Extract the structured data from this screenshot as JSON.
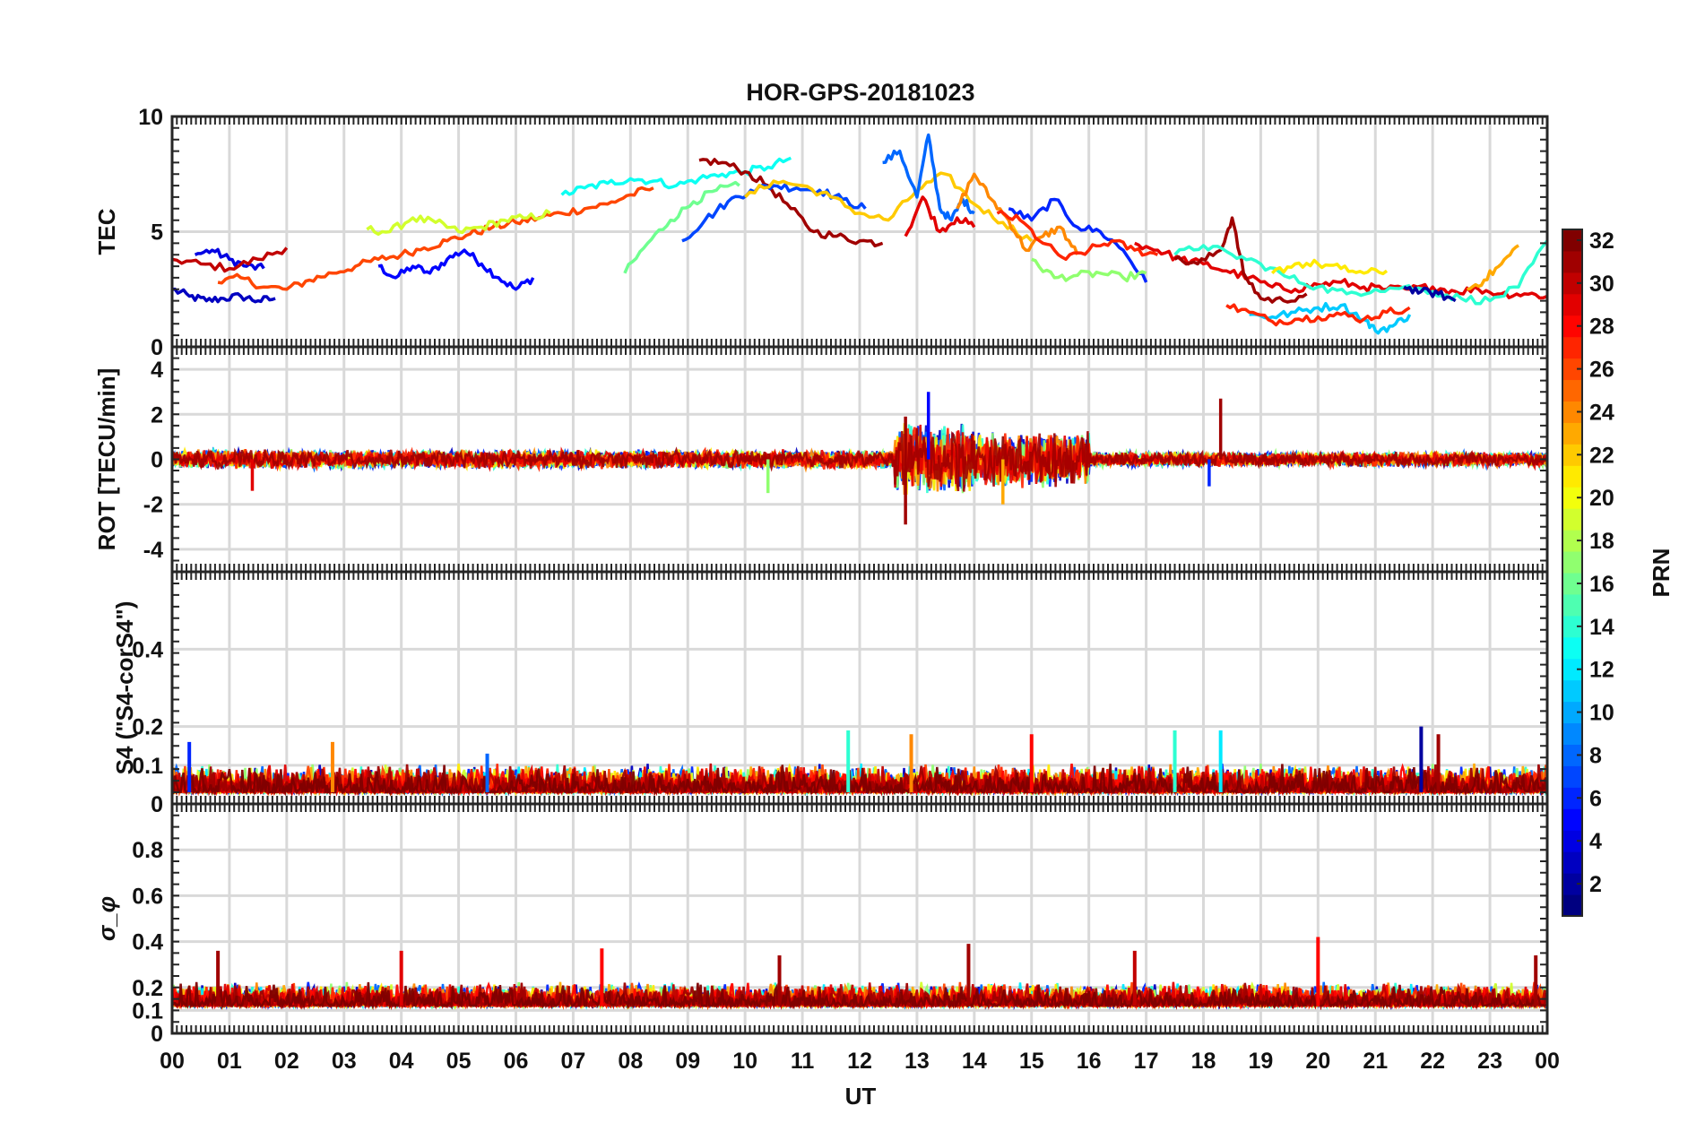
{
  "chart_data": {
    "type": "line",
    "title": "HOR-GPS-20181023",
    "xlabel": "UT",
    "x_ticks": [
      "00",
      "01",
      "02",
      "03",
      "04",
      "05",
      "06",
      "07",
      "08",
      "09",
      "10",
      "11",
      "12",
      "13",
      "14",
      "15",
      "16",
      "17",
      "18",
      "19",
      "20",
      "21",
      "22",
      "23",
      "00"
    ],
    "xlim": [
      0,
      24
    ],
    "grid": true,
    "colorbar": {
      "label": "PRN",
      "range": [
        1,
        32
      ],
      "ticks": [
        "2",
        "4",
        "6",
        "8",
        "10",
        "12",
        "14",
        "16",
        "18",
        "20",
        "22",
        "24",
        "26",
        "28",
        "30",
        "32"
      ],
      "colormap": "jet"
    },
    "panels": [
      {
        "id": "tec",
        "ylabel": "TEC",
        "ylim": [
          0,
          10
        ],
        "y_ticks": [
          "0",
          "5",
          "10"
        ],
        "series": [
          {
            "prn": 3,
            "x": [
              0.0,
              0.3,
              0.6,
              0.9,
              1.2,
              1.5,
              1.8
            ],
            "y": [
              2.5,
              2.2,
              2.0,
              2.1,
              2.2,
              2.0,
              2.1
            ]
          },
          {
            "prn": 5,
            "x": [
              3.6,
              3.9,
              4.2,
              4.5,
              4.8,
              5.1,
              5.4,
              5.7,
              6.0,
              6.3
            ],
            "y": [
              3.5,
              3.0,
              3.5,
              3.2,
              3.8,
              4.2,
              3.6,
              3.0,
              2.5,
              3.0
            ]
          },
          {
            "prn": 4,
            "x": [
              0.4,
              0.7,
              1.0,
              1.3,
              1.6
            ],
            "y": [
              4.0,
              4.2,
              3.8,
              3.5,
              3.4
            ]
          },
          {
            "prn": 30,
            "x": [
              0.0,
              0.5,
              1.0,
              1.5,
              2.0
            ],
            "y": [
              3.8,
              3.6,
              3.4,
              3.8,
              4.3
            ]
          },
          {
            "prn": 26,
            "x": [
              0.8,
              1.2,
              1.6,
              2.0,
              2.4,
              2.8,
              3.2,
              3.6,
              4.0,
              4.4,
              4.8,
              5.2,
              5.6,
              6.0,
              6.4,
              6.8,
              7.2,
              7.6,
              8.0,
              8.4
            ],
            "y": [
              2.8,
              3.0,
              2.6,
              2.5,
              2.9,
              3.2,
              3.5,
              3.8,
              4.0,
              4.3,
              4.6,
              4.9,
              5.2,
              5.4,
              5.6,
              5.8,
              6.0,
              6.2,
              6.6,
              6.9
            ]
          },
          {
            "prn": 19,
            "x": [
              3.4,
              3.8,
              4.2,
              4.6,
              5.0,
              5.4,
              5.8,
              6.2,
              6.6
            ],
            "y": [
              5.1,
              5.0,
              5.6,
              5.4,
              5.0,
              5.2,
              5.5,
              5.6,
              5.8
            ]
          },
          {
            "prn": 13,
            "x": [
              6.8,
              7.2,
              7.6,
              8.0,
              8.4,
              8.8,
              9.2,
              9.6,
              10.0,
              10.4,
              10.8
            ],
            "y": [
              6.6,
              6.9,
              7.1,
              7.3,
              7.2,
              7.0,
              7.3,
              7.5,
              7.6,
              7.8,
              8.2
            ]
          },
          {
            "prn": 16,
            "x": [
              7.9,
              8.3,
              8.7,
              9.1,
              9.5,
              9.9
            ],
            "y": [
              3.2,
              4.5,
              5.5,
              6.3,
              6.8,
              7.0
            ]
          },
          {
            "prn": 31,
            "x": [
              9.2,
              9.6,
              10.0,
              10.4,
              10.8,
              11.2,
              11.6,
              12.0,
              12.4
            ],
            "y": [
              8.1,
              8.0,
              7.6,
              7.0,
              6.0,
              5.0,
              4.8,
              4.6,
              4.5
            ]
          },
          {
            "prn": 7,
            "x": [
              8.9,
              9.3,
              9.7,
              10.1,
              10.5,
              10.9,
              11.3,
              11.7,
              12.1
            ],
            "y": [
              4.6,
              5.5,
              6.3,
              6.8,
              7.0,
              6.9,
              6.8,
              6.4,
              6.0
            ]
          },
          {
            "prn": 22,
            "x": [
              10.0,
              10.5,
              11.0,
              11.5,
              12.0,
              12.5,
              13.0,
              13.5,
              14.0,
              14.5,
              15.0
            ],
            "y": [
              6.5,
              7.2,
              7.0,
              6.5,
              5.8,
              5.5,
              6.8,
              7.5,
              6.2,
              5.4,
              4.6
            ]
          },
          {
            "prn": 8,
            "x": [
              12.4,
              12.7,
              13.0,
              13.2,
              13.4,
              13.6,
              13.8,
              14.0
            ],
            "y": [
              8.0,
              8.5,
              6.5,
              9.2,
              6.0,
              5.5,
              6.4,
              5.8
            ]
          },
          {
            "prn": 29,
            "x": [
              12.8,
              13.1,
              13.4,
              13.7,
              14.0
            ],
            "y": [
              4.8,
              6.5,
              5.0,
              5.6,
              5.2
            ]
          },
          {
            "prn": 24,
            "x": [
              13.7,
              14.0,
              14.3,
              14.6,
              14.9,
              15.2,
              15.5,
              15.8
            ],
            "y": [
              6.0,
              7.5,
              6.4,
              5.5,
              4.2,
              4.8,
              5.2,
              4.0
            ]
          },
          {
            "prn": 6,
            "x": [
              14.6,
              15.0,
              15.4,
              15.8,
              16.2,
              16.6,
              17.0
            ],
            "y": [
              6.0,
              5.5,
              6.4,
              5.2,
              5.0,
              4.2,
              2.8
            ]
          },
          {
            "prn": 17,
            "x": [
              15.0,
              15.4,
              15.8,
              16.2,
              16.6,
              17.0
            ],
            "y": [
              3.8,
              3.0,
              3.1,
              3.2,
              3.0,
              3.2
            ]
          },
          {
            "prn": 27,
            "x": [
              14.4,
              14.8,
              15.2,
              15.6,
              16.0,
              16.4,
              16.8,
              17.2
            ],
            "y": [
              5.8,
              5.5,
              4.5,
              3.8,
              4.2,
              4.6,
              4.2,
              4.0
            ]
          },
          {
            "prn": 29,
            "x": [
              16.8,
              17.2,
              17.6,
              18.0,
              18.4,
              18.8,
              19.2,
              19.6,
              20.0,
              20.4,
              20.8,
              21.2,
              21.6,
              22.0,
              22.4,
              22.8,
              23.2,
              23.6,
              24.0
            ],
            "y": [
              4.5,
              4.2,
              3.8,
              3.6,
              3.3,
              3.0,
              2.6,
              2.5,
              2.7,
              2.8,
              2.6,
              2.5,
              2.5,
              2.6,
              2.4,
              2.5,
              2.3,
              2.3,
              2.2
            ]
          },
          {
            "prn": 11,
            "x": [
              18.8,
              19.2,
              19.6,
              20.0,
              20.4,
              20.8,
              21.0,
              21.3,
              21.6
            ],
            "y": [
              1.4,
              1.3,
              1.5,
              1.7,
              1.8,
              1.2,
              0.7,
              0.9,
              1.4
            ]
          },
          {
            "prn": 27,
            "x": [
              18.4,
              18.8,
              19.2,
              19.6,
              20.0,
              20.4,
              20.8,
              21.2,
              21.6
            ],
            "y": [
              1.8,
              1.5,
              1.1,
              1.2,
              1.3,
              1.4,
              1.2,
              1.5,
              1.7
            ]
          },
          {
            "prn": 31,
            "x": [
              17.5,
              17.9,
              18.3,
              18.5,
              18.7,
              19.0,
              19.4,
              19.8
            ],
            "y": [
              3.8,
              3.6,
              4.2,
              5.6,
              3.2,
              2.1,
              2.0,
              2.3
            ]
          },
          {
            "prn": 14,
            "x": [
              17.5,
              18.0,
              18.5,
              19.0,
              19.5,
              20.0,
              20.5,
              21.0,
              21.5,
              22.0,
              22.5,
              23.0,
              23.5,
              24.0
            ],
            "y": [
              4.0,
              4.4,
              4.0,
              3.6,
              3.0,
              2.6,
              2.3,
              2.5,
              2.6,
              2.4,
              2.1,
              2.0,
              2.6,
              4.6
            ]
          },
          {
            "prn": 21,
            "x": [
              19.2,
              19.6,
              20.0,
              20.4,
              20.8,
              21.2
            ],
            "y": [
              3.2,
              3.6,
              3.6,
              3.4,
              3.2,
              3.3
            ]
          },
          {
            "prn": 2,
            "x": [
              21.5,
              21.8,
              22.1,
              22.4
            ],
            "y": [
              2.6,
              2.4,
              2.3,
              2.0
            ]
          },
          {
            "prn": 23,
            "x": [
              22.6,
              22.9,
              23.2,
              23.5
            ],
            "y": [
              2.5,
              2.9,
              3.6,
              4.4
            ]
          }
        ]
      },
      {
        "id": "rot",
        "ylabel": "ROT [TECU/min]",
        "ylim": [
          -5,
          5
        ],
        "y_ticks": [
          "-4",
          "-2",
          "0",
          "2",
          "4"
        ],
        "bursts": [
          {
            "start": 0.0,
            "end": 12.6,
            "amp": 0.45
          },
          {
            "start": 12.6,
            "end": 14.0,
            "amp": 1.7
          },
          {
            "start": 14.0,
            "end": 16.0,
            "amp": 1.3
          },
          {
            "start": 16.0,
            "end": 24.0,
            "amp": 0.35
          }
        ],
        "spikes": [
          {
            "x": 1.4,
            "y": -1.4,
            "prn": 29
          },
          {
            "x": 10.4,
            "y": -1.5,
            "prn": 17
          },
          {
            "x": 12.8,
            "y": -2.9,
            "prn": 31
          },
          {
            "x": 12.8,
            "y": 1.9,
            "prn": 31
          },
          {
            "x": 13.2,
            "y": 3.0,
            "prn": 5
          },
          {
            "x": 14.5,
            "y": -2.0,
            "prn": 23
          },
          {
            "x": 18.3,
            "y": 2.7,
            "prn": 31
          },
          {
            "x": 18.1,
            "y": -1.2,
            "prn": 6
          }
        ]
      },
      {
        "id": "s4",
        "ylabel": "S4 (\"S4-corS4\")",
        "ylim": [
          0,
          0.6
        ],
        "y_ticks": [
          "0",
          "0.1",
          "0.2",
          "0.4"
        ],
        "baseline": 0.03,
        "noise_amp": 0.05,
        "spikes": [
          {
            "x": 0.3,
            "y": 0.16,
            "prn": 6
          },
          {
            "x": 2.8,
            "y": 0.16,
            "prn": 24
          },
          {
            "x": 5.5,
            "y": 0.13,
            "prn": 8
          },
          {
            "x": 11.8,
            "y": 0.19,
            "prn": 14
          },
          {
            "x": 12.9,
            "y": 0.18,
            "prn": 24
          },
          {
            "x": 15.0,
            "y": 0.18,
            "prn": 28
          },
          {
            "x": 17.5,
            "y": 0.19,
            "prn": 14
          },
          {
            "x": 18.3,
            "y": 0.19,
            "prn": 12
          },
          {
            "x": 21.8,
            "y": 0.2,
            "prn": 2
          },
          {
            "x": 22.1,
            "y": 0.18,
            "prn": 31
          }
        ]
      },
      {
        "id": "sigma_phi",
        "ylabel": "σ_φ",
        "ylim": [
          0,
          1
        ],
        "y_ticks": [
          "0",
          "0.1",
          "0.2",
          "0.4",
          "0.6",
          "0.8"
        ],
        "baseline": 0.12,
        "noise_amp": 0.07,
        "spikes": [
          {
            "x": 0.8,
            "y": 0.36,
            "prn": 31
          },
          {
            "x": 4.0,
            "y": 0.36,
            "prn": 29
          },
          {
            "x": 7.5,
            "y": 0.37,
            "prn": 28
          },
          {
            "x": 10.6,
            "y": 0.34,
            "prn": 31
          },
          {
            "x": 13.9,
            "y": 0.39,
            "prn": 31
          },
          {
            "x": 16.8,
            "y": 0.36,
            "prn": 30
          },
          {
            "x": 20.0,
            "y": 0.42,
            "prn": 28
          },
          {
            "x": 23.8,
            "y": 0.34,
            "prn": 31
          }
        ]
      }
    ]
  }
}
